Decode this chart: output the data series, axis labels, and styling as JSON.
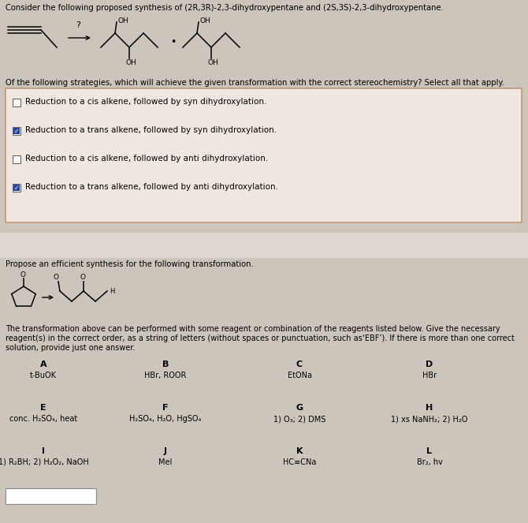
{
  "bg_top": "#ccc5bb",
  "bg_bottom": "#ccc5bb",
  "bg_white_gap": "#e8e2da",
  "panel1_bg": "#ccc5bb",
  "checkbox_bg": "#f0e8e0",
  "checkbox_border": "#c09878",
  "title1": "Consider the following proposed synthesis of (2R,3R)-2,3-dihydroxypentane and (2S,3S)-2,3-dihydroxypentane.",
  "question1": "Of the following strategies, which will achieve the given transformation with the correct stereochemistry? Select all that apply.",
  "checkbox_items": [
    {
      "text": "Reduction to a cis alkene, followed by syn dihydroxylation.",
      "checked": false
    },
    {
      "text": "Reduction to a trans alkene, followed by syn dihydroxylation.",
      "checked": true
    },
    {
      "text": "Reduction to a cis alkene, followed by anti dihydroxylation.",
      "checked": false
    },
    {
      "text": "Reduction to a trans alkene, followed by anti dihydroxylation.",
      "checked": true
    }
  ],
  "title2": "Propose an efficient synthesis for the following transformation.",
  "line1": "The transformation above can be performed with some reagent or combination of the reagents listed below. Give the necessary",
  "line2": "reagent(s) in the correct order, as a string of letters (without spaces or punctuation, such as‘EBF’). If there is more than one correct",
  "line3": "solution, provide just one answer.",
  "reagents": [
    {
      "letter": "A",
      "text": "t-BuOK"
    },
    {
      "letter": "B",
      "text": "HBr, ROOR"
    },
    {
      "letter": "C",
      "text": "EtONa"
    },
    {
      "letter": "D",
      "text": "HBr"
    },
    {
      "letter": "E",
      "text": "conc. H₂SO₄, heat"
    },
    {
      "letter": "F",
      "text": "H₂SO₄, H₂O, HgSO₄"
    },
    {
      "letter": "G",
      "text": "1) O₃; 2) DMS"
    },
    {
      "letter": "H",
      "text": "1) xs NaNH₂; 2) H₂O"
    },
    {
      "letter": "I",
      "text": "1) R₂BH; 2) H₂O₂, NaOH"
    },
    {
      "letter": "J",
      "text": "MeI"
    },
    {
      "letter": "K",
      "text": "HC≡CNa"
    },
    {
      "letter": "L",
      "text": "Br₂, hv"
    }
  ]
}
